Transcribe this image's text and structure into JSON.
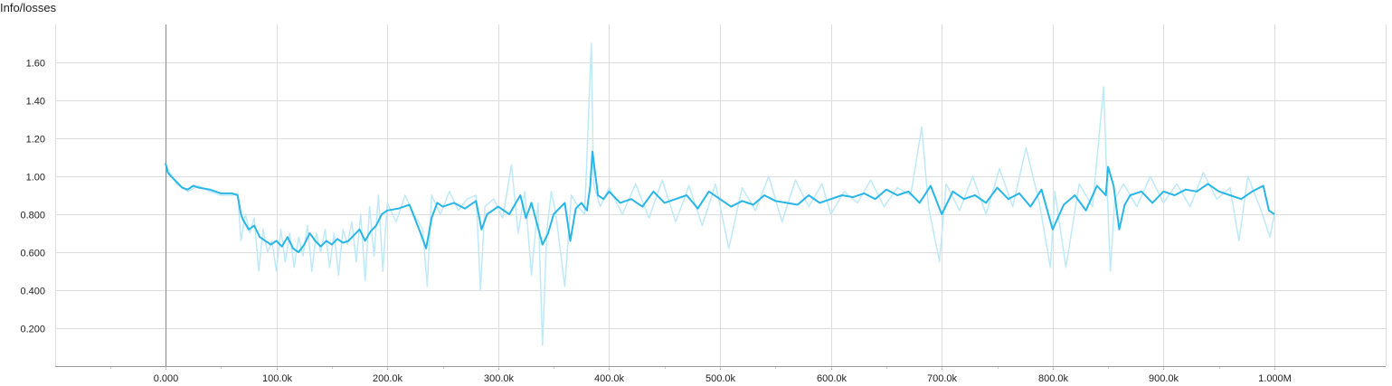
{
  "chart_data": {
    "type": "line",
    "title": "Info/losses",
    "xlabel": "",
    "ylabel": "",
    "xlim": [
      -500000,
      1000000
    ],
    "ylim": [
      0,
      1.8
    ],
    "grid": true,
    "legend": "none",
    "x_ticks": [
      0,
      100000,
      200000,
      300000,
      400000,
      500000,
      600000,
      700000,
      800000,
      900000,
      1000000
    ],
    "x_tick_labels": [
      "0.000",
      "100.0k",
      "200.0k",
      "300.0k",
      "400.0k",
      "500.0k",
      "600.0k",
      "700.0k",
      "800.0k",
      "900.0k",
      "1.000M"
    ],
    "y_ticks": [
      0.2,
      0.4,
      0.6,
      0.8,
      1.0,
      1.2,
      1.4,
      1.6
    ],
    "y_tick_labels": [
      "0.200",
      "0.400",
      "0.600",
      "0.800",
      "1.00",
      "1.20",
      "1.40",
      "1.60"
    ],
    "colors": {
      "smoothed": "#29b6e6",
      "raw": "#bfe9f8",
      "grid": "#dddddd",
      "axis": "#999999"
    },
    "series": [
      {
        "kind": "smoothed",
        "x": [
          0,
          2000,
          5000,
          10000,
          15000,
          20000,
          25000,
          30000,
          40000,
          50000,
          60000,
          65000,
          68000,
          70000,
          75000,
          80000,
          85000,
          90000,
          95000,
          100000,
          105000,
          110000,
          115000,
          120000,
          125000,
          130000,
          135000,
          140000,
          145000,
          150000,
          155000,
          160000,
          165000,
          170000,
          175000,
          180000,
          185000,
          190000,
          195000,
          200000,
          210000,
          220000,
          230000,
          235000,
          240000,
          245000,
          250000,
          260000,
          270000,
          280000,
          285000,
          290000,
          300000,
          310000,
          320000,
          325000,
          330000,
          340000,
          345000,
          350000,
          360000,
          365000,
          370000,
          375000,
          380000,
          383000,
          385000,
          390000,
          395000,
          400000,
          410000,
          420000,
          430000,
          440000,
          450000,
          460000,
          470000,
          480000,
          490000,
          500000,
          510000,
          520000,
          530000,
          540000,
          550000,
          560000,
          570000,
          580000,
          590000,
          600000,
          610000,
          620000,
          630000,
          640000,
          650000,
          660000,
          670000,
          680000,
          690000,
          700000,
          710000,
          720000,
          730000,
          740000,
          750000,
          760000,
          770000,
          780000,
          790000,
          800000,
          810000,
          820000,
          830000,
          840000,
          848000,
          850000,
          855000,
          860000,
          865000,
          870000,
          880000,
          890000,
          900000,
          910000,
          920000,
          930000,
          940000,
          950000,
          960000,
          970000,
          980000,
          990000,
          995000,
          1000000
        ],
        "y": [
          1.07,
          1.02,
          1.0,
          0.97,
          0.94,
          0.93,
          0.95,
          0.94,
          0.93,
          0.91,
          0.91,
          0.9,
          0.8,
          0.77,
          0.72,
          0.74,
          0.68,
          0.66,
          0.64,
          0.66,
          0.63,
          0.68,
          0.62,
          0.6,
          0.64,
          0.7,
          0.66,
          0.63,
          0.66,
          0.64,
          0.67,
          0.65,
          0.66,
          0.69,
          0.72,
          0.66,
          0.71,
          0.74,
          0.8,
          0.82,
          0.83,
          0.85,
          0.7,
          0.62,
          0.78,
          0.86,
          0.84,
          0.86,
          0.83,
          0.87,
          0.72,
          0.8,
          0.84,
          0.8,
          0.9,
          0.78,
          0.86,
          0.64,
          0.7,
          0.8,
          0.86,
          0.66,
          0.83,
          0.86,
          0.82,
          0.95,
          1.13,
          0.9,
          0.88,
          0.92,
          0.86,
          0.88,
          0.84,
          0.92,
          0.86,
          0.88,
          0.9,
          0.83,
          0.92,
          0.88,
          0.84,
          0.87,
          0.85,
          0.9,
          0.87,
          0.86,
          0.85,
          0.9,
          0.86,
          0.88,
          0.9,
          0.89,
          0.91,
          0.88,
          0.93,
          0.9,
          0.92,
          0.86,
          0.95,
          0.8,
          0.92,
          0.88,
          0.9,
          0.86,
          0.94,
          0.88,
          0.91,
          0.84,
          0.93,
          0.72,
          0.85,
          0.9,
          0.82,
          0.95,
          0.9,
          1.05,
          0.95,
          0.72,
          0.85,
          0.9,
          0.92,
          0.86,
          0.92,
          0.9,
          0.93,
          0.92,
          0.96,
          0.92,
          0.9,
          0.88,
          0.92,
          0.95,
          0.82,
          0.8
        ]
      },
      {
        "kind": "raw",
        "x": [
          0,
          5000,
          10000,
          20000,
          30000,
          40000,
          50000,
          60000,
          65000,
          68000,
          72000,
          76000,
          80000,
          84000,
          88000,
          92000,
          96000,
          100000,
          104000,
          108000,
          112000,
          116000,
          120000,
          124000,
          128000,
          132000,
          136000,
          140000,
          144000,
          148000,
          152000,
          156000,
          160000,
          164000,
          168000,
          172000,
          176000,
          180000,
          184000,
          188000,
          192000,
          196000,
          200000,
          208000,
          216000,
          224000,
          232000,
          236000,
          240000,
          248000,
          256000,
          264000,
          272000,
          280000,
          284000,
          288000,
          296000,
          304000,
          312000,
          318000,
          324000,
          330000,
          336000,
          340000,
          344000,
          348000,
          352000,
          360000,
          366000,
          372000,
          378000,
          384000,
          386000,
          392000,
          400000,
          412000,
          424000,
          436000,
          448000,
          460000,
          472000,
          484000,
          496000,
          508000,
          520000,
          532000,
          544000,
          556000,
          568000,
          580000,
          592000,
          600000,
          612000,
          624000,
          636000,
          648000,
          660000,
          672000,
          682000,
          688000,
          698000,
          704000,
          716000,
          728000,
          740000,
          752000,
          764000,
          776000,
          788000,
          798000,
          802000,
          812000,
          824000,
          836000,
          846000,
          849000,
          852000,
          856000,
          864000,
          876000,
          888000,
          900000,
          912000,
          924000,
          936000,
          948000,
          960000,
          968000,
          976000,
          988000,
          996000,
          1000000
        ],
        "y": [
          1.06,
          1.01,
          0.96,
          0.92,
          0.95,
          0.92,
          0.9,
          0.9,
          0.91,
          0.66,
          0.8,
          0.7,
          0.78,
          0.5,
          0.72,
          0.6,
          0.66,
          0.5,
          0.72,
          0.55,
          0.7,
          0.52,
          0.68,
          0.58,
          0.74,
          0.5,
          0.7,
          0.6,
          0.72,
          0.52,
          0.7,
          0.48,
          0.72,
          0.64,
          0.76,
          0.55,
          0.8,
          0.45,
          0.84,
          0.58,
          0.9,
          0.5,
          0.86,
          0.76,
          0.9,
          0.8,
          0.72,
          0.42,
          0.9,
          0.8,
          0.92,
          0.82,
          0.88,
          0.9,
          0.4,
          0.84,
          0.88,
          0.78,
          1.06,
          0.7,
          0.92,
          0.48,
          0.86,
          0.11,
          0.72,
          0.92,
          0.8,
          0.42,
          0.9,
          0.84,
          0.8,
          1.7,
          0.96,
          0.84,
          0.94,
          0.8,
          0.96,
          0.78,
          0.98,
          0.76,
          0.95,
          0.74,
          0.96,
          0.62,
          0.94,
          0.82,
          1.0,
          0.76,
          0.98,
          0.84,
          0.96,
          0.8,
          0.92,
          0.86,
          0.98,
          0.84,
          0.94,
          0.9,
          1.26,
          0.84,
          0.55,
          0.96,
          0.82,
          1.0,
          0.8,
          1.04,
          0.84,
          1.15,
          0.86,
          0.52,
          0.92,
          0.52,
          0.96,
          0.84,
          1.47,
          0.96,
          0.5,
          0.88,
          0.96,
          0.84,
          1.0,
          0.86,
          0.96,
          0.84,
          1.02,
          0.88,
          0.94,
          0.66,
          1.0,
          0.82,
          0.68,
          0.8
        ]
      }
    ]
  }
}
